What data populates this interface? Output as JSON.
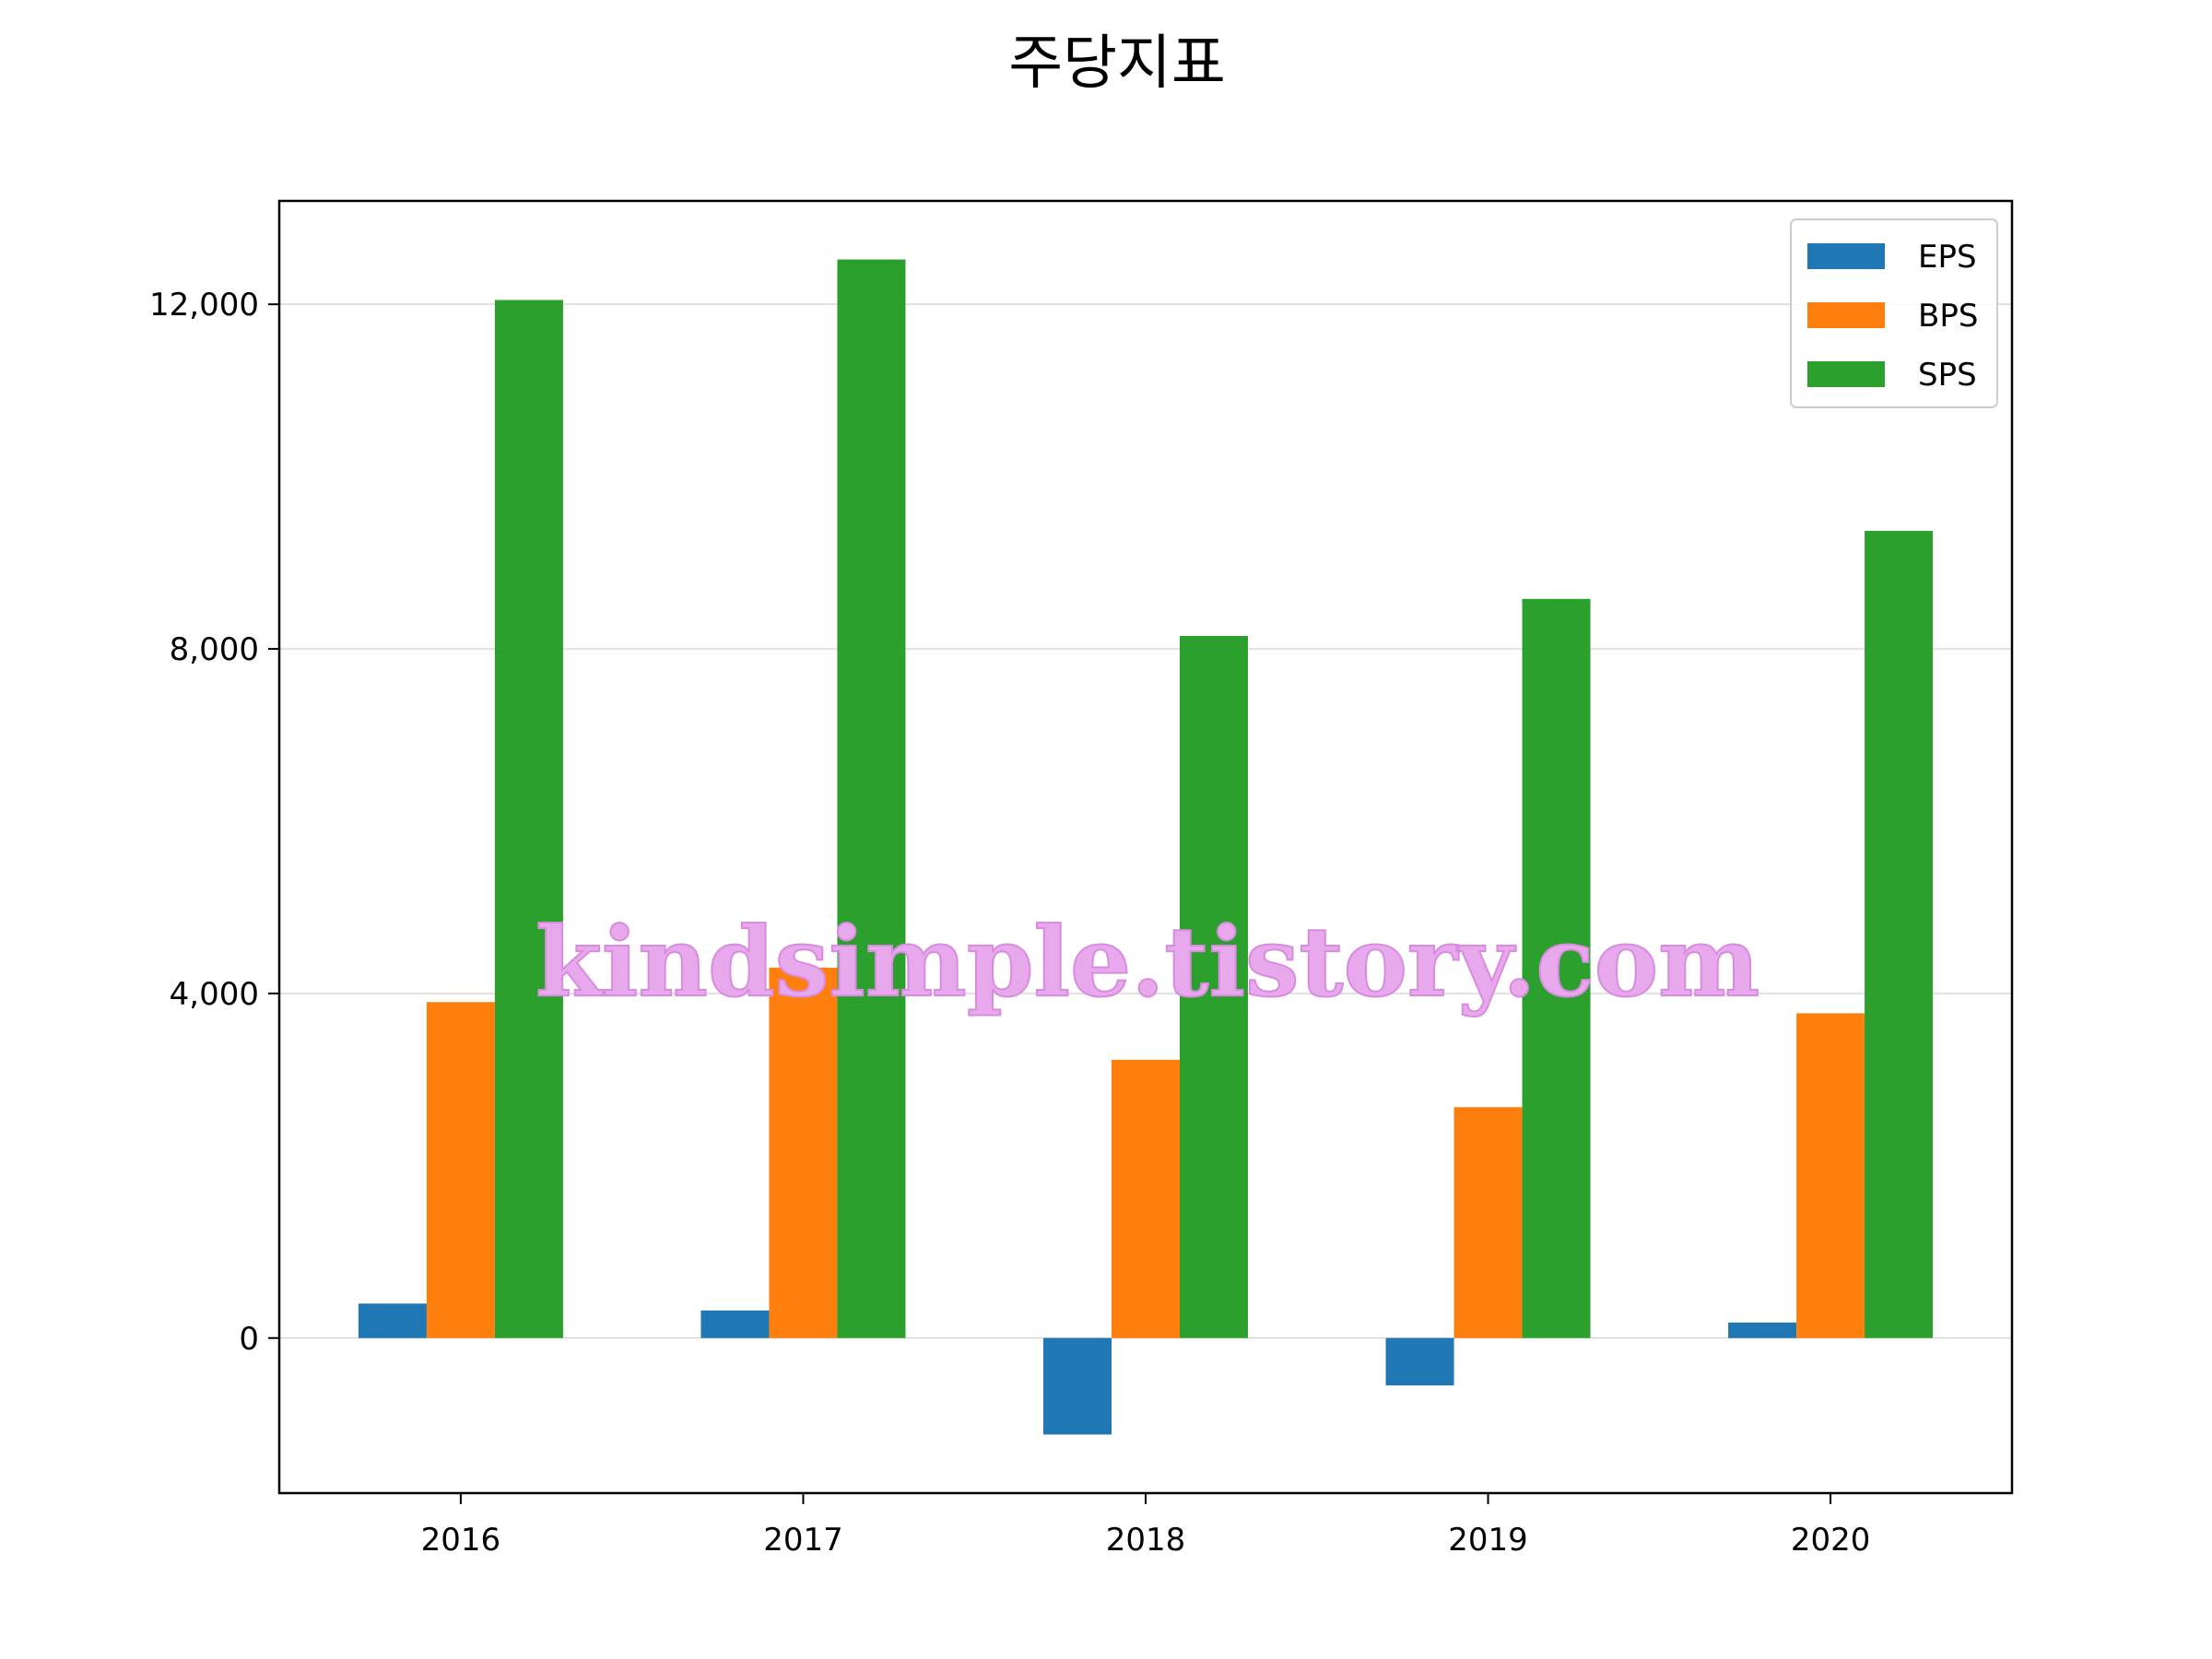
{
  "chart_data": {
    "type": "bar",
    "title": "주당지표",
    "categories": [
      "2016",
      "2017",
      "2018",
      "2019",
      "2020"
    ],
    "series": [
      {
        "name": "EPS",
        "color": "#1f77b4",
        "values": [
          400,
          320,
          -1120,
          -550,
          180
        ]
      },
      {
        "name": "BPS",
        "color": "#ff7f0e",
        "values": [
          3900,
          4300,
          3230,
          2680,
          3770
        ]
      },
      {
        "name": "SPS",
        "color": "#2ca02c",
        "values": [
          12050,
          12520,
          8150,
          8580,
          9370
        ]
      }
    ],
    "ylim": [
      -1800,
      13200
    ],
    "yticks": [
      0,
      4000,
      8000,
      12000
    ],
    "ytick_labels": [
      "0",
      "4,000",
      "8,000",
      "12,000"
    ],
    "grid": "horizontal",
    "legend_position": "top-right"
  },
  "watermark": "kindsimple.tistory.com"
}
